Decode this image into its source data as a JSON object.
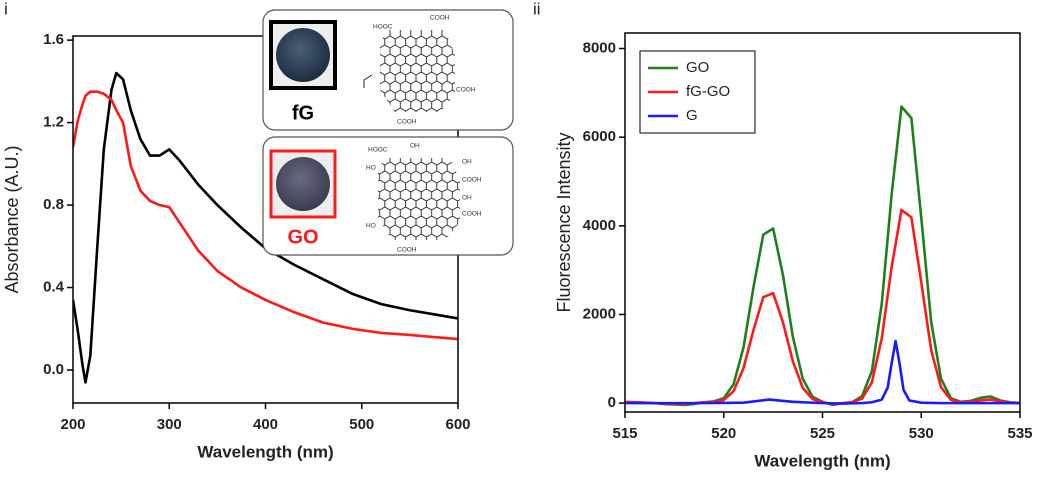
{
  "chart_data": [
    {
      "type": "line",
      "label": "i",
      "xlabel": "Wavelength (nm)",
      "ylabel": "Absorbance (A.U.)",
      "xlim": [
        200,
        600
      ],
      "ylim": [
        -0.16,
        1.62
      ],
      "xticks": [
        200,
        300,
        400,
        500,
        600
      ],
      "yticks": [
        {
          "value": 0,
          "label": "0.0"
        },
        0.4,
        0.8,
        1.2,
        1.6
      ],
      "x": [
        200,
        205,
        210,
        213,
        218,
        225,
        232,
        240,
        245,
        252,
        260,
        270,
        280,
        290,
        300,
        310,
        330,
        350,
        375,
        400,
        430,
        460,
        490,
        520,
        550,
        575,
        600
      ],
      "series": [
        {
          "color": "#000000",
          "values": [
            0.34,
            0.19,
            0.02,
            -0.06,
            0.07,
            0.58,
            1.07,
            1.36,
            1.44,
            1.41,
            1.26,
            1.12,
            1.04,
            1.04,
            1.07,
            1.02,
            0.9,
            0.8,
            0.69,
            0.59,
            0.51,
            0.44,
            0.37,
            0.32,
            0.29,
            0.27,
            0.25
          ]
        },
        {
          "color": "#ff1a1a",
          "values": [
            1.08,
            1.21,
            1.29,
            1.33,
            1.35,
            1.35,
            1.34,
            1.31,
            1.26,
            1.2,
            0.99,
            0.87,
            0.82,
            0.8,
            0.79,
            0.72,
            0.58,
            0.48,
            0.4,
            0.34,
            0.28,
            0.23,
            0.2,
            0.18,
            0.17,
            0.16,
            0.15
          ]
        }
      ],
      "insets": [
        {
          "label": "fG",
          "groups": [
            "HOOC",
            "COOH",
            "COOH",
            "COOH"
          ]
        },
        {
          "label": "GO",
          "groups": [
            "HOOC",
            "OH",
            "OH",
            "COOH",
            "HO",
            "OH",
            "COOH",
            "HO",
            "COOH"
          ]
        }
      ]
    },
    {
      "type": "line",
      "label": "ii",
      "xlabel": "Wavelength (nm)",
      "ylabel": "Fluorescence Intensity",
      "xlim": [
        515,
        535
      ],
      "ylim": [
        -200,
        8350
      ],
      "xticks": [
        515,
        520,
        525,
        530,
        535
      ],
      "yticks": [
        0,
        2000,
        4000,
        6000,
        8000
      ],
      "legend": "upper left",
      "x": [
        515,
        515.5,
        516,
        516.5,
        517,
        517.5,
        518,
        518.5,
        519,
        519.5,
        520,
        520.5,
        521,
        521.5,
        522,
        522.5,
        523,
        523.5,
        524,
        524.5,
        525,
        525.5,
        526,
        526.5,
        527,
        527.5,
        528,
        528.5,
        529,
        529.5,
        530,
        530.5,
        531,
        531.5,
        532,
        532.5,
        533,
        533.5,
        534,
        534.5,
        535
      ],
      "series": [
        {
          "name": "GO",
          "color": "#1f7f1f",
          "values": [
            20,
            20,
            10,
            0,
            -20,
            -30,
            -40,
            -20,
            20,
            40,
            110,
            430,
            1256,
            2600,
            3800,
            3940,
            2885,
            1495,
            548,
            142,
            30,
            -40,
            0,
            20,
            157,
            722,
            2240,
            4705,
            6690,
            6430,
            4185,
            1842,
            550,
            111,
            30,
            50,
            120,
            150,
            60,
            20,
            0
          ]
        },
        {
          "name": "fG-GO",
          "color": "#ff1a1a",
          "values": [
            30,
            20,
            10,
            0,
            -10,
            -20,
            -20,
            0,
            20,
            25,
            70,
            270,
            790,
            1640,
            2390,
            2480,
            1820,
            940,
            345,
            90,
            20,
            -20,
            0,
            20,
            100,
            470,
            1460,
            3070,
            4360,
            4190,
            2730,
            1200,
            360,
            75,
            20,
            30,
            60,
            80,
            40,
            10,
            0
          ]
        },
        {
          "name": "G",
          "color": "#1a1aff",
          "x": [
            515,
            517,
            519,
            521,
            522.3,
            523.5,
            525,
            526,
            527,
            527.5,
            528,
            528.3,
            528.5,
            528.7,
            528.9,
            529.1,
            529.4,
            530,
            531,
            533,
            535
          ],
          "values": [
            0,
            0,
            0,
            10,
            80,
            30,
            0,
            -10,
            0,
            20,
            80,
            350,
            900,
            1400,
            900,
            300,
            60,
            10,
            0,
            0,
            0
          ]
        }
      ]
    }
  ]
}
